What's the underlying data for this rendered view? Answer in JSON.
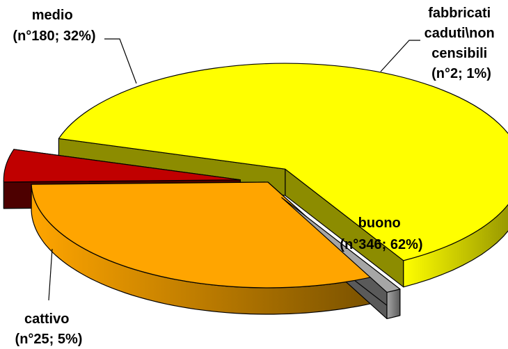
{
  "chart_data": {
    "type": "pie",
    "title": "",
    "legend": "none",
    "style": "3d-exploded",
    "slices": [
      {
        "name": "buono",
        "label_lines": [
          "buono",
          "(n°346; 62%)"
        ],
        "count": 346,
        "percent": 62,
        "color": "#ffff00",
        "side_color": "#8c8c00"
      },
      {
        "name": "cattivo",
        "label_lines": [
          "cattivo",
          "(n°25; 5%)"
        ],
        "count": 25,
        "percent": 5,
        "color": "#c00000",
        "side_color": "#4d0000"
      },
      {
        "name": "medio",
        "label_lines": [
          "medio",
          "(n°180; 32%)"
        ],
        "count": 180,
        "percent": 32,
        "color": "#ffa500",
        "side_color": "#7a5200"
      },
      {
        "name": "fabbricati caduti\\non censibili",
        "label_lines": [
          "fabbricati",
          "caduti\\non",
          "censibili",
          "(n°2; 1%)"
        ],
        "count": 2,
        "percent": 1,
        "color": "#a6a6a6",
        "side_color": "#5a5a5a"
      }
    ]
  }
}
